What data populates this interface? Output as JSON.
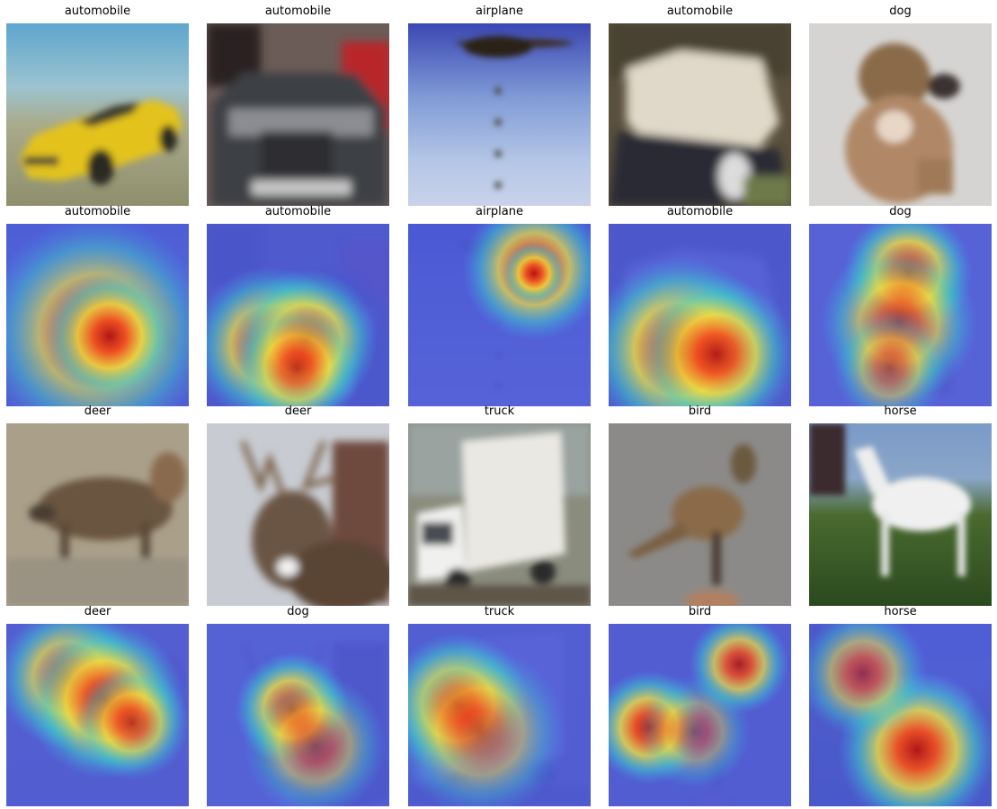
{
  "figure": {
    "rows": [
      {
        "kind": "image",
        "cells": [
          {
            "label": "automobile",
            "scene": "yellow-car"
          },
          {
            "label": "automobile",
            "scene": "grey-car-front"
          },
          {
            "label": "airplane",
            "scene": "airplane-sky"
          },
          {
            "label": "automobile",
            "scene": "white-car"
          },
          {
            "label": "dog",
            "scene": "dog"
          }
        ]
      },
      {
        "kind": "heatmap",
        "cells": [
          {
            "label": "automobile",
            "scene": "yellow-car"
          },
          {
            "label": "automobile",
            "scene": "grey-car-front"
          },
          {
            "label": "airplane",
            "scene": "airplane-sky"
          },
          {
            "label": "automobile",
            "scene": "white-car"
          },
          {
            "label": "dog",
            "scene": "dog"
          }
        ]
      },
      {
        "kind": "image",
        "cells": [
          {
            "label": "deer",
            "scene": "deer"
          },
          {
            "label": "deer",
            "scene": "stag"
          },
          {
            "label": "truck",
            "scene": "truck"
          },
          {
            "label": "bird",
            "scene": "bird"
          },
          {
            "label": "horse",
            "scene": "horse"
          }
        ]
      },
      {
        "kind": "heatmap",
        "cells": [
          {
            "label": "deer",
            "scene": "deer"
          },
          {
            "label": "dog",
            "scene": "stag"
          },
          {
            "label": "truck",
            "scene": "truck"
          },
          {
            "label": "bird",
            "scene": "bird"
          },
          {
            "label": "horse",
            "scene": "horse"
          }
        ]
      }
    ]
  }
}
